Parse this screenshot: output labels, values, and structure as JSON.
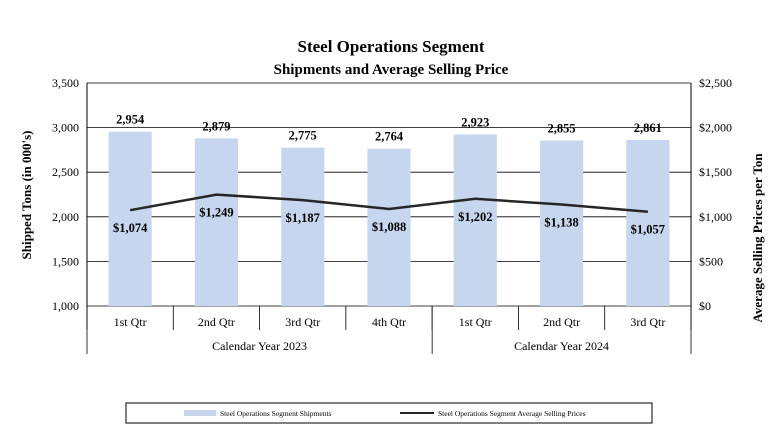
{
  "chart_data": {
    "type": "bar",
    "title": "Steel Operations Segment",
    "subtitle": "Shipments and Average Selling Price",
    "categories": [
      "1st Qtr",
      "2nd Qtr",
      "3rd Qtr",
      "4th Qtr",
      "1st Qtr",
      "2nd Qtr",
      "3rd Qtr"
    ],
    "groups": [
      {
        "label": "Calendar Year 2023",
        "count": 4
      },
      {
        "label": "Calendar Year 2024",
        "count": 3
      }
    ],
    "ylabel": "Shipped Tons (in 000's)",
    "y2label": "Average Selling Prices per Ton",
    "ylim": [
      1000,
      3500
    ],
    "y2lim": [
      0,
      2500
    ],
    "yticks": [
      "1,000",
      "1,500",
      "2,000",
      "2,500",
      "3,000",
      "3,500"
    ],
    "y2ticks": [
      "$0",
      "$500",
      "$1,000",
      "$1,500",
      "$2,000",
      "$2,500"
    ],
    "grid": true,
    "legend_position": "bottom",
    "series": [
      {
        "name": "Steel Operations Segment Shipments",
        "type": "bar",
        "axis": "left",
        "color": "#c6d6ee",
        "values": [
          2954,
          2879,
          2775,
          2764,
          2923,
          2855,
          2861
        ],
        "labels": [
          "2,954",
          "2,879",
          "2,775",
          "2,764",
          "2,923",
          "2,855",
          "2,861"
        ]
      },
      {
        "name": "Steel Operations Segment Average Selling Prices",
        "type": "line",
        "axis": "right",
        "color": "#262626",
        "values": [
          1074,
          1249,
          1187,
          1088,
          1202,
          1138,
          1057
        ],
        "labels": [
          "$1,074",
          "$1,249",
          "$1,187",
          "$1,088",
          "$1,202",
          "$1,138",
          "$1,057"
        ]
      }
    ]
  }
}
